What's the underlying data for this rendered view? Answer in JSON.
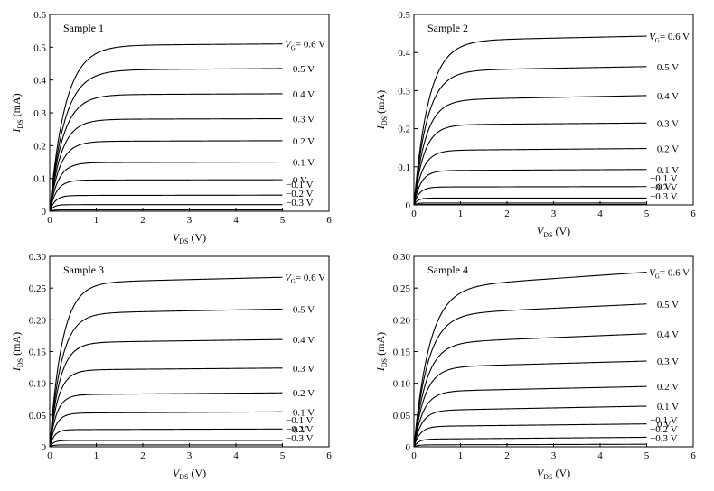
{
  "chart_data": [
    {
      "type": "line",
      "title": "Sample 1",
      "xlabel": "V",
      "xlabel_sub": "DS",
      "xlabel_unit": " (V)",
      "ylabel": "I",
      "ylabel_sub": "DS",
      "ylabel_unit": " (mA)",
      "xlim": [
        0,
        6
      ],
      "ylim": [
        0,
        0.6
      ],
      "xticks": [
        "0",
        "1",
        "2",
        "3",
        "4",
        "5",
        "6"
      ],
      "yticks": [
        "0",
        "0.1",
        "0.2",
        "0.3",
        "0.4",
        "0.5",
        "0.6"
      ],
      "legend_prefix": "V",
      "legend_prefix_sub": "G",
      "series": [
        {
          "name": "= 0.6 V",
          "sat": 0.505,
          "end": 0.51,
          "vknee": 1.0
        },
        {
          "name": "0.5 V",
          "sat": 0.43,
          "end": 0.435,
          "vknee": 0.95
        },
        {
          "name": "0.4 V",
          "sat": 0.355,
          "end": 0.358,
          "vknee": 0.85
        },
        {
          "name": "0.3 V",
          "sat": 0.28,
          "end": 0.282,
          "vknee": 0.75
        },
        {
          "name": "0.2 V",
          "sat": 0.213,
          "end": 0.215,
          "vknee": 0.65
        },
        {
          "name": "0.1 V",
          "sat": 0.148,
          "end": 0.15,
          "vknee": 0.55
        },
        {
          "name": "0 V",
          "sat": 0.095,
          "end": 0.096,
          "vknee": 0.45
        },
        {
          "name": "−0.1 V",
          "sat": 0.048,
          "end": 0.049,
          "vknee": 0.35
        },
        {
          "name": "−0.2 V",
          "sat": 0.02,
          "end": 0.02,
          "vknee": 0.25
        },
        {
          "name": "−0.3 V",
          "sat": 0.004,
          "end": 0.004,
          "vknee": 0.2
        }
      ]
    },
    {
      "type": "line",
      "title": "Sample 2",
      "xlabel": "V",
      "xlabel_sub": "DS",
      "xlabel_unit": " (V)",
      "ylabel": "I",
      "ylabel_sub": "DS",
      "ylabel_unit": " (mA)",
      "xlim": [
        0,
        6
      ],
      "ylim": [
        0,
        0.5
      ],
      "xticks": [
        "0",
        "1",
        "2",
        "3",
        "4",
        "5",
        "6"
      ],
      "yticks": [
        "0",
        "0.1",
        "0.2",
        "0.3",
        "0.4",
        "0.5"
      ],
      "legend_prefix": "V",
      "legend_prefix_sub": "G",
      "series": [
        {
          "name": "= 0.6 V",
          "sat": 0.43,
          "end": 0.443,
          "vknee": 0.95
        },
        {
          "name": "0.5 V",
          "sat": 0.352,
          "end": 0.363,
          "vknee": 0.85
        },
        {
          "name": "0.4 V",
          "sat": 0.275,
          "end": 0.287,
          "vknee": 0.75
        },
        {
          "name": "0.3 V",
          "sat": 0.21,
          "end": 0.215,
          "vknee": 0.65
        },
        {
          "name": "0.2 V",
          "sat": 0.143,
          "end": 0.148,
          "vknee": 0.55
        },
        {
          "name": "0.1 V",
          "sat": 0.09,
          "end": 0.093,
          "vknee": 0.45
        },
        {
          "name": "0 V",
          "sat": 0.047,
          "end": 0.048,
          "vknee": 0.35
        },
        {
          "name": "−0.1 V",
          "sat": 0.018,
          "end": 0.018,
          "vknee": 0.25
        },
        {
          "name": "−0.2 V",
          "sat": 0.005,
          "end": 0.005,
          "vknee": 0.2
        },
        {
          "name": "−0.3 V",
          "sat": 0.001,
          "end": 0.001,
          "vknee": 0.2
        }
      ]
    },
    {
      "type": "line",
      "title": "Sample 3",
      "xlabel": "V",
      "xlabel_sub": "DS",
      "xlabel_unit": " (V)",
      "ylabel": "I",
      "ylabel_sub": "DS",
      "ylabel_unit": " (mA)",
      "xlim": [
        0,
        6
      ],
      "ylim": [
        0,
        0.3
      ],
      "xticks": [
        "0",
        "1",
        "2",
        "3",
        "4",
        "5",
        "6"
      ],
      "yticks": [
        "0",
        "0.05",
        "0.10",
        "0.15",
        "0.20",
        "0.25",
        "0.30"
      ],
      "legend_prefix": "V",
      "legend_prefix_sub": "G",
      "series": [
        {
          "name": "= 0.6 V",
          "sat": 0.258,
          "end": 0.267,
          "vknee": 0.8
        },
        {
          "name": "0.5 V",
          "sat": 0.21,
          "end": 0.217,
          "vknee": 0.75
        },
        {
          "name": "0.4 V",
          "sat": 0.164,
          "end": 0.169,
          "vknee": 0.65
        },
        {
          "name": "0.3 V",
          "sat": 0.121,
          "end": 0.124,
          "vknee": 0.55
        },
        {
          "name": "0.2 V",
          "sat": 0.082,
          "end": 0.085,
          "vknee": 0.45
        },
        {
          "name": "0.1 V",
          "sat": 0.053,
          "end": 0.055,
          "vknee": 0.4
        },
        {
          "name": "0 V",
          "sat": 0.027,
          "end": 0.028,
          "vknee": 0.3
        },
        {
          "name": "−0.1 V",
          "sat": 0.01,
          "end": 0.01,
          "vknee": 0.25
        },
        {
          "name": "−0.2 V",
          "sat": 0.003,
          "end": 0.003,
          "vknee": 0.2
        },
        {
          "name": "−0.3 V",
          "sat": 0.0,
          "end": 0.0,
          "vknee": 0.2
        }
      ]
    },
    {
      "type": "line",
      "title": "Sample 4",
      "xlabel": "V",
      "xlabel_sub": "DS",
      "xlabel_unit": " (V)",
      "ylabel": "I",
      "ylabel_sub": "DS",
      "ylabel_unit": " (mA)",
      "xlim": [
        0,
        6
      ],
      "ylim": [
        0,
        0.3
      ],
      "xticks": [
        "0",
        "1",
        "2",
        "3",
        "4",
        "5",
        "6"
      ],
      "yticks": [
        "0",
        "0.05",
        "0.10",
        "0.15",
        "0.20",
        "0.25",
        "0.30"
      ],
      "legend_prefix": "V",
      "legend_prefix_sub": "G",
      "series": [
        {
          "name": "= 0.6 V",
          "sat": 0.25,
          "end": 0.275,
          "vknee": 1.0
        },
        {
          "name": "0.5 V",
          "sat": 0.208,
          "end": 0.225,
          "vknee": 0.9
        },
        {
          "name": "0.4 V",
          "sat": 0.163,
          "end": 0.178,
          "vknee": 0.8
        },
        {
          "name": "0.3 V",
          "sat": 0.125,
          "end": 0.135,
          "vknee": 0.7
        },
        {
          "name": "0.2 V",
          "sat": 0.087,
          "end": 0.095,
          "vknee": 0.6
        },
        {
          "name": "0.1 V",
          "sat": 0.057,
          "end": 0.064,
          "vknee": 0.5
        },
        {
          "name": "0 V",
          "sat": 0.032,
          "end": 0.036,
          "vknee": 0.4
        },
        {
          "name": "−0.1 V",
          "sat": 0.012,
          "end": 0.015,
          "vknee": 0.3
        },
        {
          "name": "−0.2 V",
          "sat": 0.003,
          "end": 0.004,
          "vknee": 0.25
        },
        {
          "name": "−0.3 V",
          "sat": 0.0,
          "end": 0.0,
          "vknee": 0.2
        }
      ]
    }
  ]
}
